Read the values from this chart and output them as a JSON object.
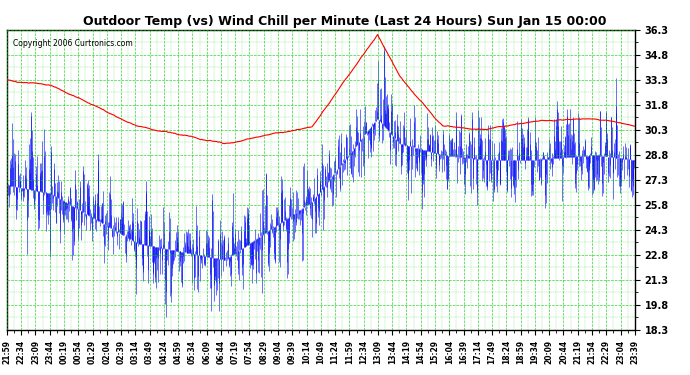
{
  "title": "Outdoor Temp (vs) Wind Chill per Minute (Last 24 Hours) Sun Jan 15 00:00",
  "copyright": "Copyright 2006 Curtronics.com",
  "ylabel_right_ticks": [
    36.3,
    34.8,
    33.3,
    31.8,
    30.3,
    28.8,
    27.3,
    25.8,
    24.3,
    22.8,
    21.3,
    19.8,
    18.3
  ],
  "ylim": [
    18.3,
    36.3
  ],
  "xlim": [
    0,
    1440
  ],
  "x_tick_labels": [
    "21:59",
    "22:34",
    "23:09",
    "23:44",
    "00:19",
    "00:54",
    "01:29",
    "02:04",
    "02:39",
    "03:14",
    "03:49",
    "04:24",
    "04:59",
    "05:34",
    "06:09",
    "06:44",
    "07:19",
    "07:54",
    "08:29",
    "09:04",
    "09:39",
    "10:14",
    "10:49",
    "11:24",
    "11:59",
    "12:34",
    "13:09",
    "13:44",
    "14:19",
    "14:54",
    "15:29",
    "16:04",
    "16:39",
    "17:14",
    "17:49",
    "18:24",
    "18:59",
    "19:34",
    "20:09",
    "20:44",
    "21:19",
    "21:54",
    "22:29",
    "23:04",
    "23:39"
  ],
  "bg_color": "#ffffff",
  "plot_bg_color": "#ffffff",
  "grid_color": "#00cc00",
  "outer_temp_color": "#ff0000",
  "wind_chill_color": "#0000ff",
  "title_color": "#000000",
  "title_bg_color": "#ffffff",
  "border_color": "#000000"
}
